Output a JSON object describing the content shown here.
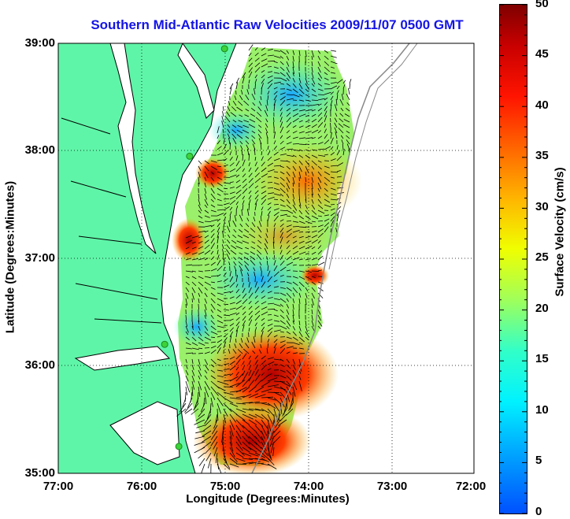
{
  "title": "Southern Mid-Atlantic Raw Velocities 2009/11/07 0500 GMT",
  "axes": {
    "x_label": "Longitude (Degrees:Minutes)",
    "y_label": "Latitude (Degrees:Minutes)",
    "x_ticks": [
      "77:00",
      "76:00",
      "75:00",
      "74:00",
      "73:00",
      "72:00"
    ],
    "y_ticks": [
      "39:00",
      "38:00",
      "37:00",
      "36:00",
      "35:00"
    ],
    "x_range_deg_west": [
      77,
      72
    ],
    "y_range_deg_north": [
      35,
      39
    ],
    "grid": "dotted"
  },
  "colorbar": {
    "label": "Surface Velocity (cm/s)",
    "ticks": [
      "50",
      "45",
      "40",
      "35",
      "30",
      "25",
      "20",
      "15",
      "10",
      "5",
      "0"
    ],
    "range": [
      0,
      50
    ],
    "colors": [
      "#0050ff",
      "#00f2ff",
      "#a0ff5a",
      "#f0ff00",
      "#ff6400",
      "#c80000",
      "#7f0000"
    ]
  },
  "map_colors": {
    "land": "#5ff5a8",
    "water_background": "#ffffff",
    "coastline": "#000000",
    "bathymetry_contour": "#888888",
    "station_marker": "#3cd23c"
  },
  "stations_lonlat": [
    [
      -75.0,
      38.95
    ],
    [
      -75.42,
      37.95
    ],
    [
      -75.72,
      36.2
    ],
    [
      -75.55,
      35.25
    ]
  ]
}
